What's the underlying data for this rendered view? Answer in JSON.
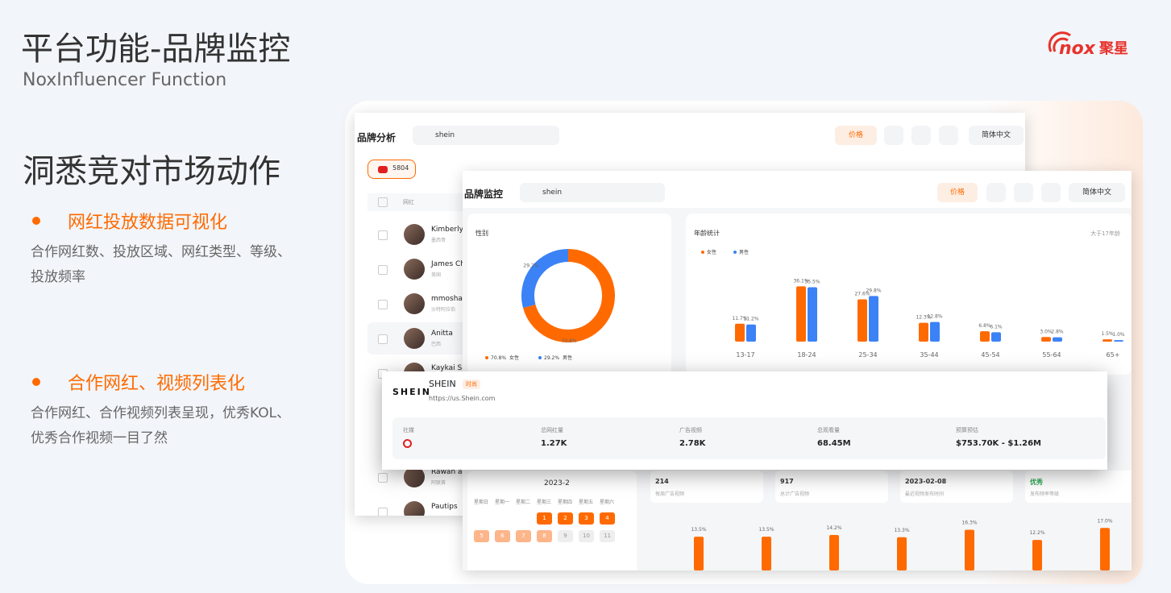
{
  "header": {
    "title": "平台功能-品牌监控",
    "subtitle": "NoxInfluencer Function",
    "logo_mark": "nox",
    "logo_text": "聚星"
  },
  "section": {
    "heading": "洞悉竞对市场动作",
    "bullets": [
      {
        "title": "网红投放数据可视化",
        "description": [
          "合作网红数、投放区域、网红类型、等级、",
          "投放频率"
        ]
      },
      {
        "title": "合作网红、视频列表化",
        "description": [
          "合作网红、合作视频列表呈现，优秀KOL、",
          "优秀合作视频一目了然"
        ]
      }
    ]
  },
  "brand_analysis": {
    "title": "品牌分析",
    "search": "shein",
    "price_button": "价格",
    "language": "简体中文",
    "youtube_count": "5804",
    "column": "网红",
    "influencers": [
      {
        "name": "Kimberly",
        "region": "墨西哥"
      },
      {
        "name": "James Ch",
        "region": "美国"
      },
      {
        "name": "mmoshay",
        "region": "沙特阿拉伯"
      },
      {
        "name": "Anitta",
        "region": "巴西"
      },
      {
        "name": "Kaykai Sa"
      },
      {
        "name": "Rawan an",
        "region": "阿联酋"
      },
      {
        "name": "Pautips"
      }
    ]
  },
  "brand_monitor": {
    "title": "品牌监控",
    "search": "shein",
    "price_button": "价格",
    "language": "简体中文",
    "gender": {
      "title": "性别",
      "categories": [
        "女性",
        "男性"
      ],
      "values": [
        70.8,
        29.2
      ],
      "value_labels": [
        "70.8%",
        "29.2%"
      ],
      "colors": [
        "#ff6a00",
        "#3b82f6"
      ]
    },
    "age": {
      "title": "年龄统计",
      "note": "大于17年龄",
      "categories": [
        "13-17",
        "18-24",
        "25-34",
        "35-44",
        "45-54",
        "55-64",
        "65+"
      ],
      "series": [
        {
          "name": "女性",
          "color": "#ff6a00",
          "values": [
            11.7,
            36.1,
            27.6,
            12.3,
            6.8,
            3.0,
            1.5
          ],
          "value_labels": [
            "11.7%",
            "36.1%",
            "27.6%",
            "12.3%",
            "6.8%",
            "3.0%",
            "1.5%"
          ]
        },
        {
          "name": "男性",
          "color": "#3b82f6",
          "values": [
            11.2,
            35.5,
            29.8,
            12.8,
            6.1,
            2.8,
            1.0
          ],
          "value_labels": [
            "11.2%",
            "35.5%",
            "29.8%",
            "12.8%",
            "6.1%",
            "2.8%",
            "1.0%"
          ]
        }
      ]
    },
    "brand": {
      "logo": "SHEIN",
      "name": "SHEIN",
      "tag": "时尚",
      "url": "https://us.Shein.com",
      "stats": [
        {
          "label": "社媒"
        },
        {
          "label": "总网红量",
          "value": "1.27K"
        },
        {
          "label": "广告视频",
          "value": "2.78K"
        },
        {
          "label": "总观看量",
          "value": "68.45M"
        },
        {
          "label": "预算预估",
          "value": "$753.70K - $1.26M"
        }
      ]
    },
    "calendar": {
      "month": "2023-2",
      "weekdays": [
        "星期日",
        "星期一",
        "星期二",
        "星期三",
        "星期四",
        "星期五",
        "星期六"
      ],
      "days": [
        "1",
        "2",
        "3",
        "4",
        "5",
        "6",
        "7",
        "8",
        "9",
        "10",
        "11"
      ]
    },
    "activity": [
      {
        "value": "214",
        "label": "每周广告视频"
      },
      {
        "value": "917",
        "label": "总计广告视频"
      },
      {
        "value": "2023-02-08",
        "label": "最近视频发布时间"
      },
      {
        "value": "优秀",
        "label": "发布频率等级"
      }
    ],
    "frequency": {
      "values": [
        13.5,
        13.5,
        14.2,
        13.3,
        16.3,
        12.2,
        17.0
      ],
      "value_labels": [
        "13.5%",
        "13.5%",
        "14.2%",
        "13.3%",
        "16.3%",
        "12.2%",
        "17.0%"
      ],
      "color": "#ff6a00"
    }
  }
}
